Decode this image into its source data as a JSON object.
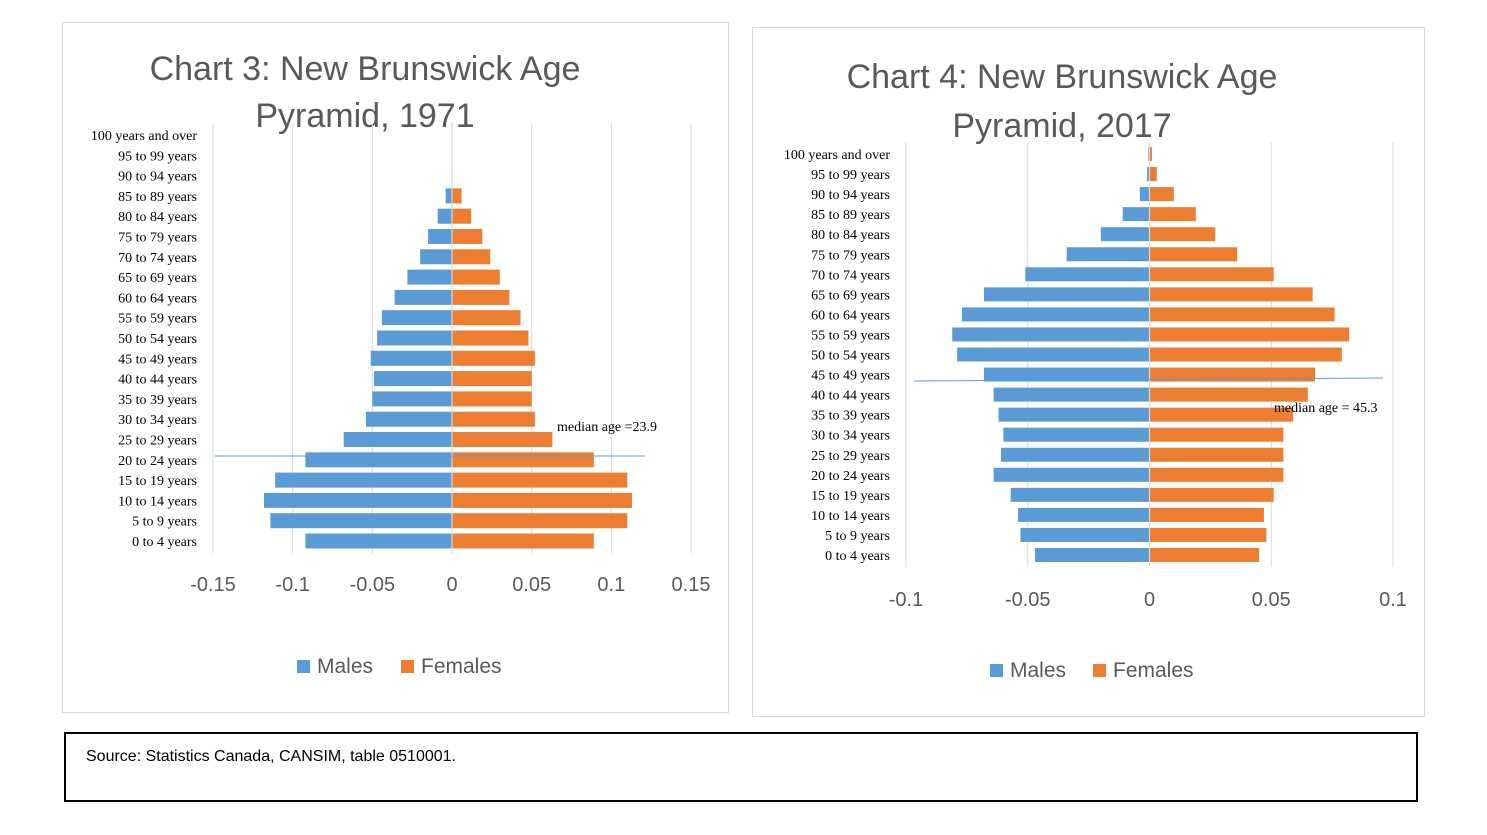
{
  "chart_data": [
    {
      "type": "bar",
      "title": "Chart 3: New Brunswick Age Pyramid, 1971",
      "title_lines": [
        "Chart 3: New Brunswick Age",
        "Pyramid, 1971"
      ],
      "categories": [
        "0 to 4 years",
        "5 to 9 years",
        "10 to 14 years",
        "15 to 19 years",
        "20 to 24 years",
        "25 to 29 years",
        "30 to 34 years",
        "35 to 39 years",
        "40 to 44 years",
        "45 to 49 years",
        "50 to 54 years",
        "55 to 59 years",
        "60 to 64 years",
        "65 to 69 years",
        "70 to 74 years",
        "75 to 79 years",
        "80 to 84 years",
        "85 to 89 years",
        "90 to 94 years",
        "95 to 99 years",
        "100 years and over"
      ],
      "series": [
        {
          "name": "Males",
          "color": "#5b9bd5",
          "values": [
            -0.092,
            -0.114,
            -0.118,
            -0.111,
            -0.092,
            -0.068,
            -0.054,
            -0.05,
            -0.049,
            -0.051,
            -0.047,
            -0.044,
            -0.036,
            -0.028,
            -0.02,
            -0.015,
            -0.009,
            -0.004,
            0,
            0,
            0
          ]
        },
        {
          "name": "Females",
          "color": "#ed7d31",
          "values": [
            0.089,
            0.11,
            0.113,
            0.11,
            0.089,
            0.063,
            0.052,
            0.05,
            0.05,
            0.052,
            0.048,
            0.043,
            0.036,
            0.03,
            0.024,
            0.019,
            0.012,
            0.006,
            0,
            0,
            0
          ]
        }
      ],
      "xlim": [
        -0.15,
        0.15
      ],
      "xticks": [
        -0.15,
        -0.1,
        -0.05,
        0,
        0.05,
        0.1,
        0.15
      ],
      "tick_labels": [
        "-0.15",
        "-0.1",
        "-0.05",
        "0",
        "0.05",
        "0.1",
        "0.15"
      ],
      "median_age": 23.9,
      "annotation": "median age =23.9",
      "legend": "bottom",
      "grid": true
    },
    {
      "type": "bar",
      "title": "Chart 4: New Brunswick Age Pyramid, 2017",
      "title_lines": [
        "Chart 4: New Brunswick Age",
        "Pyramid, 2017"
      ],
      "categories": [
        "0 to 4 years",
        "5 to 9 years",
        "10 to 14 years",
        "15 to 19 years",
        "20 to 24 years",
        "25 to 29 years",
        "30 to 34 years",
        "35 to 39 years",
        "40 to 44 years",
        "45 to 49 years",
        "50 to 54 years",
        "55 to 59 years",
        "60 to 64 years",
        "65 to 69 years",
        "70 to 74 years",
        "75 to 79 years",
        "80 to 84 years",
        "85 to 89 years",
        "90 to 94 years",
        "95 to 99 years",
        "100 years and over"
      ],
      "series": [
        {
          "name": "Males",
          "color": "#5b9bd5",
          "values": [
            -0.047,
            -0.053,
            -0.054,
            -0.057,
            -0.064,
            -0.061,
            -0.06,
            -0.062,
            -0.064,
            -0.068,
            -0.079,
            -0.081,
            -0.077,
            -0.068,
            -0.051,
            -0.034,
            -0.02,
            -0.011,
            -0.004,
            -0.001,
            -0.0005
          ]
        },
        {
          "name": "Females",
          "color": "#ed7d31",
          "values": [
            0.045,
            0.048,
            0.047,
            0.051,
            0.055,
            0.055,
            0.055,
            0.059,
            0.065,
            0.068,
            0.079,
            0.082,
            0.076,
            0.067,
            0.051,
            0.036,
            0.027,
            0.019,
            0.01,
            0.003,
            0.001
          ]
        }
      ],
      "xlim": [
        -0.1,
        0.1
      ],
      "xticks": [
        -0.1,
        -0.05,
        0,
        0.05,
        0.1
      ],
      "tick_labels": [
        "-0.1",
        "-0.05",
        "0",
        "0.05",
        "0.1"
      ],
      "median_age": 45.3,
      "annotation": "median age = 45.3",
      "legend": "bottom",
      "grid": true
    }
  ],
  "source": "Source: Statistics Canada, CANSIM, table 0510001."
}
